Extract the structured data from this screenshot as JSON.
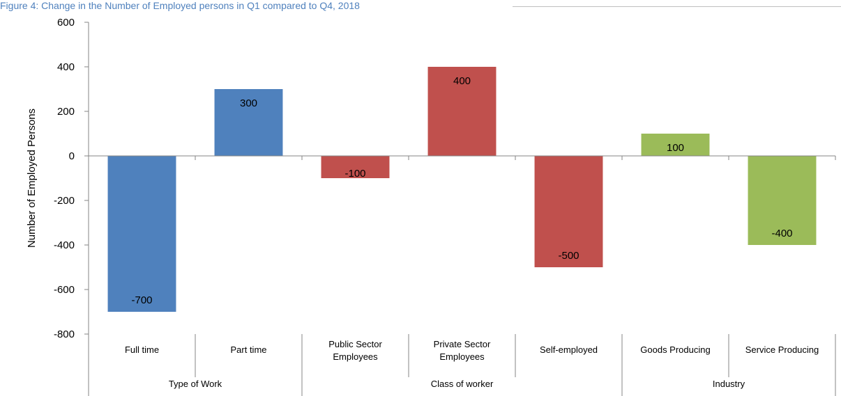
{
  "chart_data": {
    "type": "bar",
    "title": "Figure 4: Change in the Number of Employed persons in Q1 compared to Q4, 2018",
    "ylabel": "Number of Employed Persons",
    "ylim": [
      -800,
      600
    ],
    "yticks": [
      600,
      400,
      200,
      0,
      -200,
      -400,
      -600,
      -800
    ],
    "grid": false,
    "legend": "none",
    "categories": [
      "Full time",
      "Part time",
      "Public Sector Employees",
      "Private Sector Employees",
      "Self-employed",
      "Goods Producing",
      "Service Producing"
    ],
    "category_lines": [
      [
        "Full time"
      ],
      [
        "Part time"
      ],
      [
        "Public Sector",
        "Employees"
      ],
      [
        "Private Sector",
        "Employees"
      ],
      [
        "Self-employed"
      ],
      [
        "Goods Producing"
      ],
      [
        "Service Producing"
      ]
    ],
    "values": [
      -700,
      300,
      -100,
      400,
      -500,
      100,
      -400
    ],
    "data_labels": [
      "-700",
      "300",
      "-100",
      "400",
      "-500",
      "100",
      "-400"
    ],
    "groups": [
      {
        "label": "Type of Work",
        "count": 2,
        "color": "#4F81BD"
      },
      {
        "label": "Class of worker",
        "count": 3,
        "color": "#C0504D"
      },
      {
        "label": "Industry",
        "count": 2,
        "color": "#9BBB59"
      }
    ]
  }
}
